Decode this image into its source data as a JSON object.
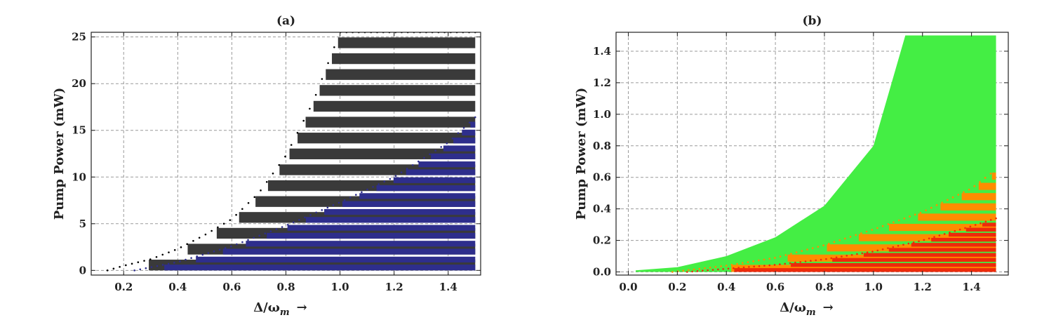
{
  "chart_data": [
    {
      "panel_label": "(a)",
      "type": "area",
      "xlabel": "Δ/ω",
      "xlabel_subscript": "m",
      "xlabel_arrow": "→",
      "ylabel": "Pump Power (mW)",
      "xlim": [
        0.08,
        1.52
      ],
      "ylim": [
        -0.5,
        25.5
      ],
      "xticks": [
        0.2,
        0.4,
        0.6,
        0.8,
        1.0,
        1.2,
        1.4
      ],
      "xtick_labels": [
        "0.2",
        "0.4",
        "0.6",
        "0.8",
        "1.0",
        "1.2",
        "1.4"
      ],
      "yticks": [
        0,
        5,
        10,
        15,
        20,
        25
      ],
      "ytick_labels": [
        "0",
        "5",
        "10",
        "15",
        "20",
        "25"
      ],
      "grid": true,
      "colors": {
        "outer_region": "#3a3a3a",
        "inner_region": "#2e2e8c"
      },
      "regions": [
        {
          "color_key": "outer_region",
          "x_max": 1.5,
          "y_max": 25.5,
          "band_step": 1.7,
          "band_height": 1.15,
          "boundary": [
            [
              0.14,
              0.0
            ],
            [
              0.2,
              0.5
            ],
            [
              0.3,
              1.2
            ],
            [
              0.4,
              2.3
            ],
            [
              0.5,
              3.8
            ],
            [
              0.6,
              5.5
            ],
            [
              0.7,
              8.3
            ],
            [
              0.8,
              12.3
            ],
            [
              0.9,
              18.0
            ],
            [
              1.0,
              25.5
            ]
          ]
        },
        {
          "color_key": "inner_region",
          "x_max": 1.5,
          "y_max": 16.4,
          "band_step": 0.85,
          "band_height": 0.62,
          "boundary": [
            [
              0.24,
              0.0
            ],
            [
              0.4,
              0.9
            ],
            [
              0.6,
              2.6
            ],
            [
              0.8,
              4.8
            ],
            [
              1.0,
              7.3
            ],
            [
              1.2,
              10.0
            ],
            [
              1.4,
              13.7
            ],
            [
              1.5,
              16.4
            ]
          ]
        }
      ]
    },
    {
      "panel_label": "(b)",
      "type": "area",
      "xlabel": "Δ/ω",
      "xlabel_subscript": "m",
      "xlabel_arrow": "→",
      "ylabel": "Pump Power (mW)",
      "xlim": [
        -0.05,
        1.55
      ],
      "ylim": [
        -0.02,
        1.52
      ],
      "xticks": [
        0.0,
        0.2,
        0.4,
        0.6,
        0.8,
        1.0,
        1.2,
        1.4
      ],
      "xtick_labels": [
        "0.0",
        "0.2",
        "0.4",
        "0.6",
        "0.8",
        "1.0",
        "1.2",
        "1.4"
      ],
      "yticks": [
        0.0,
        0.2,
        0.4,
        0.6,
        0.8,
        1.0,
        1.2,
        1.4
      ],
      "ytick_labels": [
        "0.0",
        "0.2",
        "0.4",
        "0.6",
        "0.8",
        "1.0",
        "1.2",
        "1.4"
      ],
      "grid": true,
      "colors": {
        "green_region": "#44ee44",
        "orange_region": "#ff8c00",
        "red_region": "#ee2a0a"
      },
      "regions": [
        {
          "color_key": "green_region",
          "x_max": 1.5,
          "y_max": 1.5,
          "band_step": 0,
          "band_height": 0,
          "boundary": [
            [
              0.03,
              0.01
            ],
            [
              0.2,
              0.03
            ],
            [
              0.4,
              0.1
            ],
            [
              0.6,
              0.22
            ],
            [
              0.8,
              0.42
            ],
            [
              1.0,
              0.8
            ],
            [
              1.13,
              1.5
            ]
          ]
        },
        {
          "color_key": "orange_region",
          "x_max": 1.5,
          "y_max": 0.65,
          "band_step": 0.065,
          "band_height": 0.045,
          "boundary": [
            [
              0.18,
              0.0
            ],
            [
              0.4,
              0.04
            ],
            [
              0.6,
              0.09
            ],
            [
              0.8,
              0.17
            ],
            [
              1.0,
              0.27
            ],
            [
              1.2,
              0.38
            ],
            [
              1.4,
              0.53
            ],
            [
              1.5,
              0.65
            ]
          ]
        },
        {
          "color_key": "red_region",
          "x_max": 1.5,
          "y_max": 0.34,
          "band_step": 0.032,
          "band_height": 0.024,
          "boundary": [
            [
              0.24,
              0.0
            ],
            [
              0.4,
              0.02
            ],
            [
              0.6,
              0.045
            ],
            [
              0.8,
              0.08
            ],
            [
              1.0,
              0.13
            ],
            [
              1.2,
              0.2
            ],
            [
              1.4,
              0.29
            ],
            [
              1.5,
              0.34
            ]
          ]
        }
      ]
    }
  ]
}
